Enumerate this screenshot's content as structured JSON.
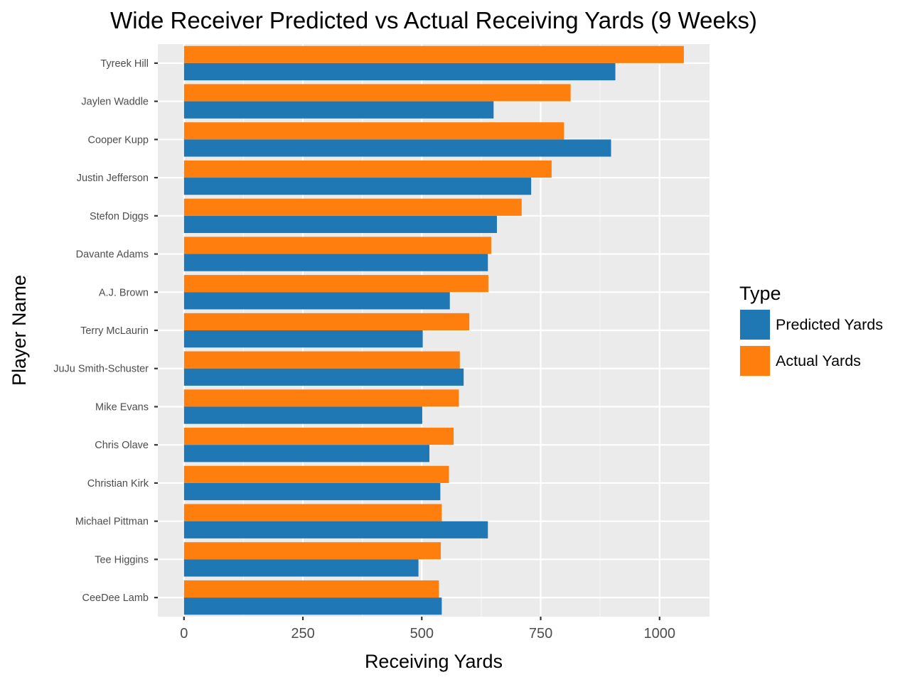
{
  "chart_data": {
    "type": "bar",
    "orientation": "horizontal",
    "title": "Wide Receiver Predicted vs Actual Receiving Yards (9 Weeks)",
    "xlabel": "Receiving Yards",
    "ylabel": "Player Name",
    "categories": [
      "Tyreek Hill",
      "Jaylen Waddle",
      "Cooper Kupp",
      "Justin Jefferson",
      "Stefon Diggs",
      "Davante Adams",
      "A.J. Brown",
      "Terry McLaurin",
      "JuJu Smith-Schuster",
      "Mike Evans",
      "Chris Olave",
      "Christian Kirk",
      "Michael Pittman",
      "Tee Higgins",
      "CeeDee Lamb"
    ],
    "series": [
      {
        "name": "Predicted Yards",
        "color": "#1f77b4",
        "values": [
          907,
          651,
          898,
          730,
          658,
          639,
          559,
          502,
          588,
          501,
          516,
          539,
          639,
          493,
          542
        ]
      },
      {
        "name": "Actual Yards",
        "color": "#ff7f0e",
        "values": [
          1051,
          813,
          799,
          773,
          710,
          646,
          640,
          600,
          580,
          578,
          567,
          557,
          542,
          540,
          536
        ]
      }
    ],
    "xlim": [
      -55,
      1105
    ],
    "xticks": [
      0,
      250,
      500,
      750,
      1000
    ],
    "xtick_labels": [
      "0",
      "250",
      "500",
      "750",
      "1000"
    ],
    "grid": true,
    "legend": {
      "title": "Type",
      "placement": "right",
      "entries": [
        "Predicted Yards",
        "Actual Yards"
      ]
    }
  }
}
